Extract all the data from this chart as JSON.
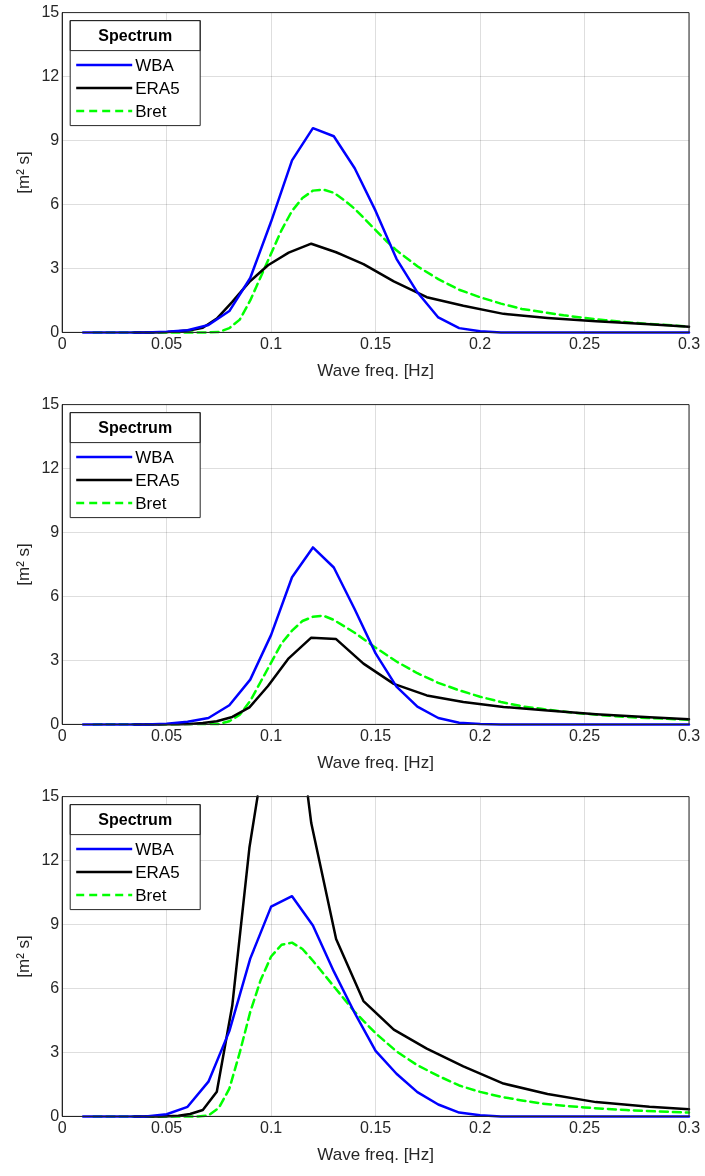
{
  "chart_data": [
    {
      "type": "line",
      "xlabel": "Wave freq. [Hz]",
      "ylabel": "[m² s]",
      "legend_title": "Spectrum",
      "legend": "top left",
      "grid": true,
      "xlim": [
        0,
        0.3
      ],
      "xticks": [
        0,
        0.05,
        0.1,
        0.15,
        0.2,
        0.25,
        0.3
      ],
      "ylim": [
        0,
        15
      ],
      "yticks": [
        0,
        3,
        6,
        9,
        12,
        15
      ],
      "series": [
        {
          "name": "WBA",
          "color": "#0000ff",
          "line_style": "solid",
          "x": [
            0.01,
            0.02,
            0.03,
            0.04,
            0.05,
            0.06,
            0.07,
            0.08,
            0.09,
            0.1,
            0.11,
            0.12,
            0.13,
            0.14,
            0.15,
            0.16,
            0.17,
            0.18,
            0.19,
            0.2,
            0.21,
            0.22,
            0.23,
            0.24,
            0.25,
            0.26,
            0.27,
            0.28,
            0.29,
            0.3
          ],
          "values": [
            0,
            0,
            0,
            0,
            0.03,
            0.1,
            0.35,
            1.0,
            2.55,
            5.2,
            8.07,
            9.58,
            9.2,
            7.7,
            5.7,
            3.45,
            1.88,
            0.7,
            0.2,
            0.05,
            0,
            0,
            0,
            0,
            0,
            0,
            0,
            0,
            0,
            0
          ]
        },
        {
          "name": "ERA5",
          "color": "#000000",
          "line_style": "solid",
          "x": [
            0.0345,
            0.038,
            0.0418,
            0.046,
            0.0506,
            0.0556,
            0.0612,
            0.0673,
            0.074,
            0.0814,
            0.0896,
            0.0985,
            0.1084,
            0.1192,
            0.1311,
            0.1442,
            0.1587,
            0.1745,
            0.192,
            0.2112,
            0.2323,
            0.2555,
            0.2811,
            0.3
          ],
          "values": [
            0,
            0,
            0,
            0.01,
            0.02,
            0.05,
            0.1,
            0.22,
            0.65,
            1.43,
            2.37,
            3.15,
            3.74,
            4.16,
            3.76,
            3.2,
            2.39,
            1.65,
            1.25,
            0.87,
            0.68,
            0.52,
            0.38,
            0.27
          ]
        },
        {
          "name": "Bret",
          "color": "#00ff00",
          "line_style": "dashed",
          "x": [
            0.015,
            0.07,
            0.075,
            0.08,
            0.085,
            0.09,
            0.095,
            0.1,
            0.105,
            0.11,
            0.115,
            0.12,
            0.125,
            0.13,
            0.135,
            0.14,
            0.145,
            0.15,
            0.155,
            0.16,
            0.17,
            0.18,
            0.19,
            0.2,
            0.21,
            0.22,
            0.23,
            0.24,
            0.25,
            0.26,
            0.27,
            0.28,
            0.3
          ],
          "values": [
            0,
            0,
            0.02,
            0.2,
            0.6,
            1.5,
            2.6,
            3.7,
            4.8,
            5.7,
            6.3,
            6.65,
            6.7,
            6.55,
            6.2,
            5.8,
            5.3,
            4.8,
            4.3,
            3.85,
            3.1,
            2.5,
            2.0,
            1.65,
            1.35,
            1.1,
            0.95,
            0.8,
            0.68,
            0.57,
            0.48,
            0.4,
            0.28
          ]
        }
      ]
    },
    {
      "type": "line",
      "xlabel": "Wave freq. [Hz]",
      "ylabel": "[m² s]",
      "legend_title": "Spectrum",
      "legend": "top left",
      "grid": true,
      "xlim": [
        0,
        0.3
      ],
      "xticks": [
        0,
        0.05,
        0.1,
        0.15,
        0.2,
        0.25,
        0.3
      ],
      "ylim": [
        0,
        15
      ],
      "yticks": [
        0,
        3,
        6,
        9,
        12,
        15
      ],
      "series": [
        {
          "name": "WBA",
          "color": "#0000ff",
          "line_style": "solid",
          "x": [
            0.01,
            0.02,
            0.03,
            0.04,
            0.05,
            0.06,
            0.07,
            0.08,
            0.09,
            0.1,
            0.11,
            0.12,
            0.13,
            0.14,
            0.15,
            0.16,
            0.17,
            0.18,
            0.19,
            0.2,
            0.21,
            0.22,
            0.23,
            0.24,
            0.25,
            0.26,
            0.27,
            0.28,
            0.29,
            0.3
          ],
          "values": [
            0,
            0,
            0,
            0,
            0.03,
            0.12,
            0.3,
            0.9,
            2.1,
            4.2,
            6.9,
            8.3,
            7.36,
            5.4,
            3.33,
            1.77,
            0.83,
            0.3,
            0.08,
            0.02,
            0,
            0,
            0,
            0,
            0,
            0,
            0,
            0,
            0,
            0
          ]
        },
        {
          "name": "ERA5",
          "color": "#000000",
          "line_style": "solid",
          "x": [
            0.0345,
            0.038,
            0.0418,
            0.046,
            0.0506,
            0.0556,
            0.0612,
            0.0673,
            0.074,
            0.0814,
            0.0896,
            0.0985,
            0.1084,
            0.1192,
            0.1311,
            0.1442,
            0.1587,
            0.1745,
            0.192,
            0.2112,
            0.2323,
            0.2555,
            0.2811,
            0.3
          ],
          "values": [
            0,
            0,
            0,
            0,
            0.01,
            0.01,
            0.02,
            0.07,
            0.15,
            0.35,
            0.8,
            1.8,
            3.1,
            4.07,
            4.0,
            2.85,
            1.9,
            1.36,
            1.05,
            0.82,
            0.65,
            0.48,
            0.34,
            0.24
          ]
        },
        {
          "name": "Bret",
          "color": "#00ff00",
          "line_style": "dashed",
          "x": [
            0.015,
            0.075,
            0.08,
            0.085,
            0.09,
            0.095,
            0.1,
            0.105,
            0.11,
            0.115,
            0.12,
            0.125,
            0.13,
            0.135,
            0.14,
            0.145,
            0.15,
            0.16,
            0.17,
            0.18,
            0.19,
            0.2,
            0.21,
            0.22,
            0.23,
            0.24,
            0.25,
            0.26,
            0.27,
            0.28,
            0.3
          ],
          "values": [
            0,
            0.02,
            0.15,
            0.45,
            1.1,
            2.0,
            2.9,
            3.8,
            4.4,
            4.85,
            5.05,
            5.1,
            4.9,
            4.6,
            4.3,
            3.95,
            3.6,
            2.95,
            2.4,
            1.95,
            1.6,
            1.3,
            1.05,
            0.85,
            0.72,
            0.6,
            0.5,
            0.42,
            0.35,
            0.3,
            0.22
          ]
        }
      ]
    },
    {
      "type": "line",
      "xlabel": "Wave freq. [Hz]",
      "ylabel": "[m² s]",
      "legend_title": "Spectrum",
      "legend": "top left",
      "grid": true,
      "xlim": [
        0,
        0.3
      ],
      "xticks": [
        0,
        0.05,
        0.1,
        0.15,
        0.2,
        0.25,
        0.3
      ],
      "ylim": [
        0,
        15
      ],
      "yticks": [
        0,
        3,
        6,
        9,
        12,
        15
      ],
      "series": [
        {
          "name": "WBA",
          "color": "#0000ff",
          "line_style": "solid",
          "x": [
            0.01,
            0.02,
            0.03,
            0.04,
            0.05,
            0.06,
            0.07,
            0.08,
            0.09,
            0.1,
            0.11,
            0.12,
            0.13,
            0.14,
            0.15,
            0.16,
            0.17,
            0.18,
            0.19,
            0.2,
            0.21,
            0.22,
            0.23,
            0.24,
            0.25,
            0.26,
            0.27,
            0.28,
            0.29,
            0.3
          ],
          "values": [
            0,
            0,
            0,
            0,
            0.1,
            0.45,
            1.63,
            4.0,
            7.4,
            9.84,
            10.33,
            8.95,
            6.8,
            4.85,
            3.07,
            2.0,
            1.14,
            0.56,
            0.18,
            0.05,
            0,
            0,
            0,
            0,
            0,
            0,
            0,
            0,
            0,
            0
          ]
        },
        {
          "name": "ERA5",
          "color": "#000000",
          "line_style": "solid",
          "x": [
            0.0345,
            0.038,
            0.0418,
            0.046,
            0.0506,
            0.0556,
            0.0612,
            0.0673,
            0.074,
            0.0814,
            0.0896,
            0.0935,
            0.1,
            0.1176,
            0.1192,
            0.1311,
            0.1442,
            0.1587,
            0.1745,
            0.192,
            0.2112,
            0.2323,
            0.2555,
            0.2811,
            0.3
          ],
          "values": [
            0,
            0,
            0,
            0,
            0.01,
            0.03,
            0.11,
            0.3,
            1.16,
            5.2,
            12.6,
            15,
            null,
            15,
            13.76,
            8.32,
            5.41,
            4.07,
            3.18,
            2.35,
            1.54,
            1.05,
            0.67,
            0.45,
            0.34
          ]
        },
        {
          "name": "Bret",
          "color": "#00ff00",
          "line_style": "dashed",
          "x": [
            0.015,
            0.065,
            0.07,
            0.075,
            0.08,
            0.085,
            0.09,
            0.095,
            0.1,
            0.105,
            0.11,
            0.115,
            0.12,
            0.125,
            0.13,
            0.135,
            0.14,
            0.145,
            0.15,
            0.16,
            0.17,
            0.18,
            0.19,
            0.2,
            0.21,
            0.22,
            0.23,
            0.24,
            0.25,
            0.26,
            0.27,
            0.28,
            0.3
          ],
          "values": [
            0,
            0,
            0.05,
            0.4,
            1.3,
            3.0,
            4.9,
            6.4,
            7.5,
            8.05,
            8.15,
            7.85,
            7.3,
            6.7,
            6.1,
            5.5,
            4.9,
            4.4,
            3.9,
            3.05,
            2.4,
            1.9,
            1.45,
            1.15,
            0.92,
            0.75,
            0.6,
            0.5,
            0.42,
            0.35,
            0.3,
            0.25,
            0.18
          ]
        }
      ]
    }
  ]
}
